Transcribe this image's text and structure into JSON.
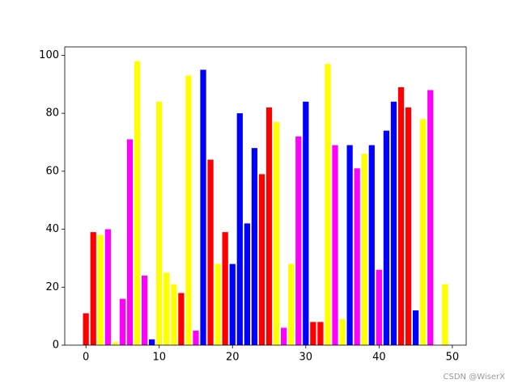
{
  "chart_data": {
    "type": "bar",
    "x": [
      0,
      1,
      2,
      3,
      4,
      5,
      6,
      7,
      8,
      9,
      10,
      11,
      12,
      13,
      14,
      15,
      16,
      17,
      18,
      19,
      20,
      21,
      22,
      23,
      24,
      25,
      26,
      27,
      28,
      29,
      30,
      31,
      32,
      33,
      34,
      35,
      36,
      37,
      38,
      39,
      40,
      41,
      42,
      43,
      44,
      45,
      46,
      47,
      48,
      49
    ],
    "values": [
      11,
      39,
      38,
      40,
      1,
      16,
      71,
      98,
      24,
      2,
      84,
      25,
      21,
      18,
      93,
      5,
      95,
      64,
      28,
      39,
      28,
      80,
      42,
      68,
      59,
      82,
      77,
      6,
      28,
      72,
      84,
      8,
      8,
      97,
      69,
      9,
      69,
      61,
      66,
      69,
      26,
      74,
      84,
      89,
      82,
      12,
      78,
      88,
      0,
      21
    ],
    "colors": [
      "red",
      "red",
      "yellow",
      "magenta",
      "yellow",
      "magenta",
      "magenta",
      "yellow",
      "magenta",
      "blue",
      "yellow",
      "yellow",
      "yellow",
      "red",
      "yellow",
      "magenta",
      "blue",
      "red",
      "yellow",
      "red",
      "blue",
      "blue",
      "blue",
      "blue",
      "red",
      "red",
      "yellow",
      "magenta",
      "yellow",
      "magenta",
      "blue",
      "red",
      "red",
      "yellow",
      "magenta",
      "yellow",
      "blue",
      "magenta",
      "yellow",
      "blue",
      "magenta",
      "blue",
      "blue",
      "red",
      "red",
      "blue",
      "yellow",
      "magenta",
      "yellow",
      "yellow"
    ],
    "xlim": [
      -2.89,
      51.89
    ],
    "xticks": [
      0,
      10,
      20,
      30,
      40,
      50
    ],
    "ylim": [
      0,
      102.9
    ],
    "yticks": [
      0,
      20,
      40,
      60,
      80,
      100
    ],
    "watermark": "CSDN @WiserX"
  }
}
